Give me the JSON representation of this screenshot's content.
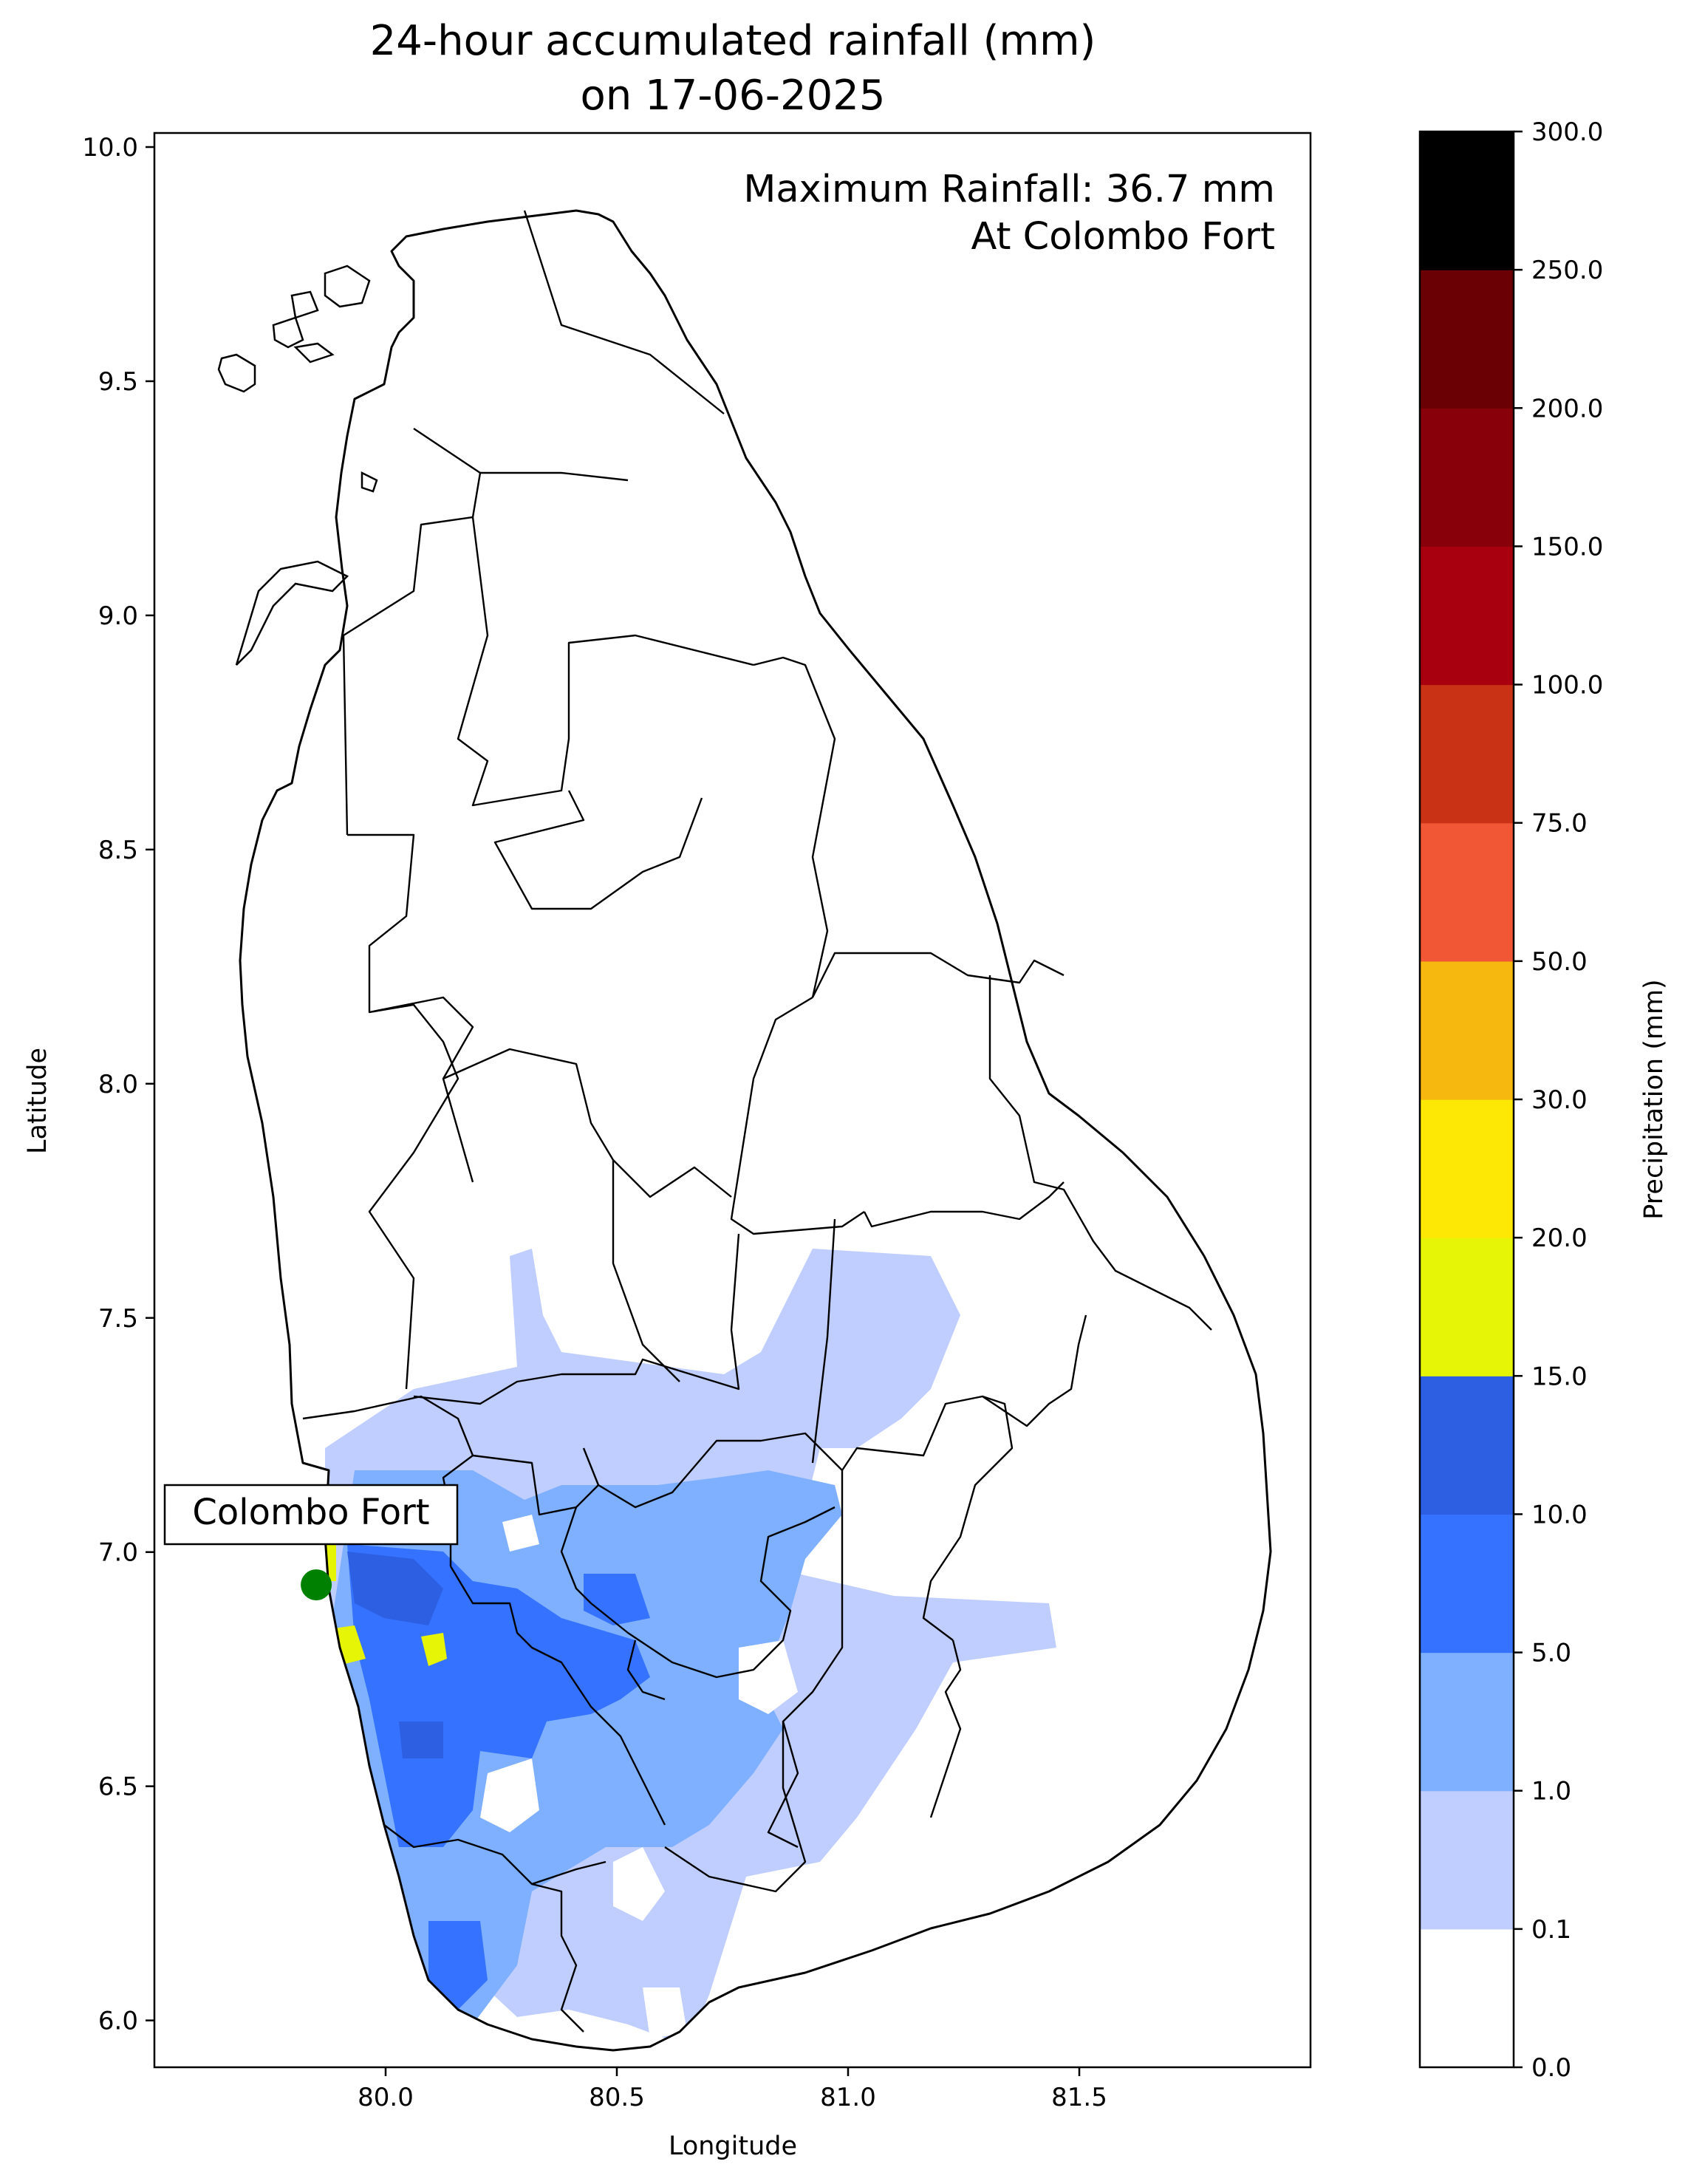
{
  "title_line1": "24-hour accumulated rainfall (mm)",
  "title_line2": "on 17-06-2025",
  "max_rainfall_line1": "Maximum Rainfall: 36.7 mm",
  "max_rainfall_line2": "At Colombo Fort",
  "station_label": "Colombo Fort",
  "xlabel": "Longitude",
  "ylabel": "Latitude",
  "colorbar_label": "Precipitation (mm)",
  "map": {
    "xlim": [
      79.5,
      82.0
    ],
    "ylim": [
      5.9,
      10.03
    ],
    "x_ticks": [
      {
        "value": 80.0,
        "label": "80.0"
      },
      {
        "value": 80.5,
        "label": "80.5"
      },
      {
        "value": 81.0,
        "label": "81.0"
      },
      {
        "value": 81.5,
        "label": "81.5"
      }
    ],
    "y_ticks": [
      {
        "value": 6.0,
        "label": "6.0"
      },
      {
        "value": 6.5,
        "label": "6.5"
      },
      {
        "value": 7.0,
        "label": "7.0"
      },
      {
        "value": 7.5,
        "label": "7.5"
      },
      {
        "value": 8.0,
        "label": "8.0"
      },
      {
        "value": 8.5,
        "label": "8.5"
      },
      {
        "value": 9.0,
        "label": "9.0"
      },
      {
        "value": 9.5,
        "label": "9.5"
      },
      {
        "value": 10.0,
        "label": "10.0"
      }
    ],
    "station": {
      "lon": 79.85,
      "lat": 6.93,
      "color": "#008000"
    }
  },
  "colorbar": {
    "levels": [
      {
        "label": "0.0",
        "color": "#ffffff"
      },
      {
        "label": "0.1",
        "color": "#c0ceff"
      },
      {
        "label": "1.0",
        "color": "#7eb0ff"
      },
      {
        "label": "5.0",
        "color": "#3572ff"
      },
      {
        "label": "10.0",
        "color": "#2c5fe2"
      },
      {
        "label": "15.0",
        "color": "#e6f505"
      },
      {
        "label": "20.0",
        "color": "#fde805"
      },
      {
        "label": "30.0",
        "color": "#f6b80e"
      },
      {
        "label": "50.0",
        "color": "#f25735"
      },
      {
        "label": "75.0",
        "color": "#c93214"
      },
      {
        "label": "100.0",
        "color": "#a8000f"
      },
      {
        "label": "150.0",
        "color": "#87000a"
      },
      {
        "label": "200.0",
        "color": "#6a0003"
      },
      {
        "label": "250.0",
        "color": "#000000"
      },
      {
        "label": "300.0",
        "color": ""
      }
    ]
  }
}
